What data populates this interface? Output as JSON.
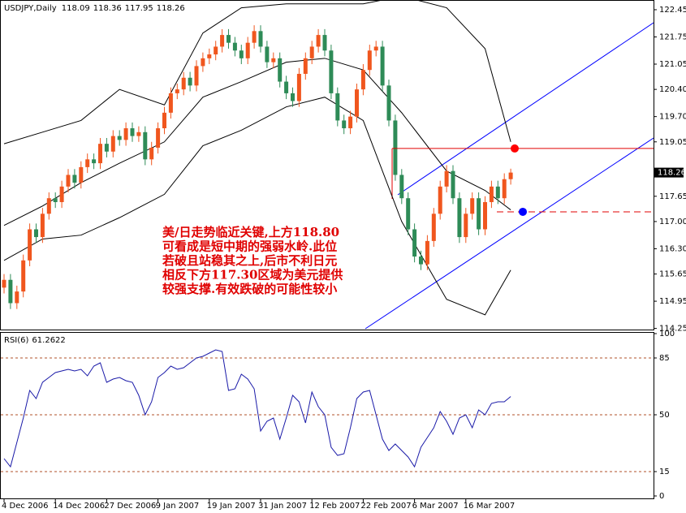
{
  "chart_data": [
    {
      "type": "candlestick",
      "title": "USDJPY,Daily",
      "open": [
        115.3,
        115.5,
        114.9,
        115.2,
        116.0,
        116.8,
        116.6,
        117.2,
        117.6,
        117.5,
        117.9,
        118.2,
        118.0,
        118.4,
        118.6,
        118.5,
        119.0,
        118.8,
        119.2,
        119.1,
        119.4,
        119.2,
        119.3,
        118.6,
        118.9,
        119.4,
        119.8,
        120.3,
        120.4,
        120.7,
        120.5,
        121.0,
        121.2,
        121.3,
        121.5,
        121.8,
        121.6,
        121.4,
        121.2,
        121.6,
        121.9,
        121.5,
        121.1,
        121.2,
        120.6,
        120.3,
        120.1,
        120.8,
        121.2,
        121.5,
        121.8,
        121.4,
        120.3,
        119.6,
        119.4,
        119.7,
        120.4,
        120.9,
        121.4,
        121.5,
        120.5,
        119.6,
        118.2,
        117.6,
        116.8,
        116.1,
        115.9,
        116.5,
        117.2,
        117.9,
        118.3,
        117.6,
        116.6,
        117.2,
        117.6,
        116.8,
        117.5,
        117.9,
        117.6,
        118.09
      ],
      "high": [
        115.65,
        115.65,
        115.35,
        116.15,
        116.95,
        116.95,
        117.35,
        117.75,
        117.75,
        118.05,
        118.35,
        118.35,
        118.55,
        118.75,
        118.75,
        119.15,
        119.15,
        119.35,
        119.35,
        119.55,
        119.55,
        119.45,
        119.45,
        119.05,
        119.55,
        119.95,
        120.45,
        120.55,
        120.85,
        120.85,
        121.15,
        121.35,
        121.45,
        121.65,
        121.95,
        121.95,
        121.75,
        121.55,
        121.75,
        122.05,
        122.05,
        121.65,
        121.35,
        121.35,
        120.75,
        120.45,
        120.95,
        121.35,
        121.65,
        121.95,
        121.95,
        121.55,
        120.45,
        119.75,
        119.85,
        120.55,
        121.05,
        121.55,
        121.65,
        121.65,
        120.65,
        119.75,
        118.35,
        117.75,
        116.95,
        116.25,
        116.65,
        117.35,
        118.05,
        118.45,
        118.45,
        117.75,
        117.35,
        117.75,
        117.75,
        117.65,
        118.05,
        118.05,
        118.24,
        118.36
      ],
      "low": [
        115.15,
        114.75,
        114.75,
        115.05,
        115.85,
        116.45,
        116.45,
        117.05,
        117.35,
        117.35,
        117.75,
        117.85,
        117.85,
        118.25,
        118.35,
        118.35,
        118.65,
        118.65,
        118.95,
        118.95,
        119.05,
        119.05,
        118.45,
        118.45,
        118.75,
        119.25,
        119.65,
        120.15,
        120.25,
        120.35,
        120.35,
        120.85,
        121.05,
        121.15,
        121.35,
        121.45,
        121.25,
        121.05,
        121.05,
        121.45,
        121.35,
        120.95,
        120.95,
        120.45,
        120.15,
        119.95,
        119.95,
        120.65,
        121.05,
        121.35,
        121.25,
        120.15,
        119.45,
        119.25,
        119.25,
        119.55,
        120.25,
        120.75,
        121.25,
        120.35,
        119.45,
        118.05,
        117.45,
        116.65,
        115.95,
        115.75,
        115.75,
        116.35,
        117.05,
        117.75,
        117.45,
        116.45,
        116.45,
        117.05,
        116.65,
        116.65,
        117.35,
        117.45,
        117.45,
        117.95
      ],
      "close": [
        115.5,
        114.9,
        115.2,
        116.0,
        116.8,
        116.6,
        117.2,
        117.6,
        117.5,
        117.9,
        118.2,
        118.0,
        118.4,
        118.6,
        118.5,
        119.0,
        118.8,
        119.2,
        119.1,
        119.4,
        119.2,
        119.3,
        118.6,
        118.9,
        119.4,
        119.8,
        120.3,
        120.4,
        120.7,
        120.5,
        121.0,
        121.2,
        121.3,
        121.5,
        121.8,
        121.6,
        121.4,
        121.2,
        121.6,
        121.9,
        121.5,
        121.1,
        121.2,
        120.6,
        120.3,
        120.1,
        120.8,
        121.2,
        121.5,
        121.8,
        121.4,
        120.3,
        119.6,
        119.4,
        119.7,
        120.4,
        120.9,
        121.4,
        121.5,
        120.5,
        119.6,
        118.2,
        117.6,
        116.8,
        116.1,
        115.9,
        116.5,
        117.2,
        117.9,
        118.3,
        117.6,
        116.6,
        117.2,
        117.6,
        116.8,
        117.5,
        117.9,
        117.6,
        118.09,
        118.26
      ],
      "up_color": "#f0561e",
      "down_color": "#2e8b57",
      "bands": {
        "x": [
          0,
          6,
          12,
          18,
          25,
          31,
          37,
          44,
          50,
          56,
          62,
          69,
          75,
          79
        ],
        "upper": [
          119.0,
          119.3,
          119.6,
          120.4,
          120.0,
          121.85,
          122.5,
          122.6,
          122.6,
          122.6,
          122.8,
          122.5,
          121.45,
          119.05
        ],
        "middle": [
          116.9,
          117.4,
          118.0,
          118.5,
          119.05,
          120.2,
          120.6,
          121.1,
          121.2,
          120.9,
          119.8,
          118.3,
          117.8,
          117.3
        ],
        "lower": [
          116.0,
          116.55,
          116.65,
          117.1,
          117.7,
          118.95,
          119.35,
          119.95,
          120.2,
          119.6,
          117.0,
          115.0,
          114.6,
          115.75
        ],
        "color": "#000000"
      },
      "levels": [
        {
          "value": 118.88,
          "color": "#e00000",
          "dashed": false
        },
        {
          "value": 117.25,
          "color": "#e00000",
          "dashed": true
        }
      ],
      "annotation": [
        "美/日走势临近关键,上方118.80",
        "可看成是短中期的强弱水岭.此位",
        "若破且站稳其之上,后市不利日元",
        "相反下方117.30区域为美元提供",
        "较强支撑.有效跌破的可能性较小"
      ],
      "ylim": [
        114.2,
        122.7
      ],
      "yticks": [
        122.45,
        121.75,
        121.05,
        {
          "value": 120.4,
          "label": "120.40"
        },
        {
          "value": 119.7,
          "label": "119.70"
        },
        119.05,
        117.65,
        {
          "value": 117.0,
          "label": "117.00"
        },
        {
          "value": 116.3,
          "label": "116.30"
        },
        115.65,
        114.95,
        114.25
      ],
      "xticks": [
        {
          "value": 0,
          "label": "4 Dec 2006"
        },
        {
          "value": 8,
          "label": "14 Dec 2006"
        },
        {
          "value": 16,
          "label": "27 Dec 2006"
        },
        {
          "value": 24,
          "label": "9 Jan 2007"
        },
        {
          "value": 32,
          "label": "19 Jan 2007"
        },
        {
          "value": 40,
          "label": "31 Jan 2007"
        },
        {
          "value": 48,
          "label": "12 Feb 2007"
        },
        {
          "value": 56,
          "label": "22 Feb 2007"
        },
        {
          "value": 64,
          "label": "6 Mar 2007"
        },
        {
          "value": 72,
          "label": "16 Mar 2007"
        }
      ]
    },
    {
      "type": "line",
      "title": "RSI(6)",
      "color": "#1a1aa8",
      "values": [
        23,
        18,
        33,
        48,
        65,
        60,
        70,
        73,
        76,
        77,
        78,
        77,
        78,
        74,
        80,
        82,
        70,
        72,
        73,
        71,
        70,
        62,
        50,
        58,
        73,
        76,
        80,
        78,
        79,
        82,
        85,
        86,
        88,
        90,
        89,
        65,
        66,
        75,
        72,
        66,
        40,
        46,
        48,
        35,
        48,
        62,
        58,
        45,
        64,
        55,
        50,
        30,
        25,
        26,
        42,
        60,
        64,
        65,
        50,
        35,
        28,
        32,
        28,
        24,
        18,
        30,
        36,
        42,
        52,
        46,
        38,
        48,
        50,
        42,
        53,
        50,
        57,
        58,
        58,
        61.2622
      ],
      "levels": [
        85,
        50,
        15
      ],
      "level_color": "#b0502a",
      "ylim": [
        -2,
        101.5
      ],
      "yticks": [
        100,
        85,
        50,
        15,
        0
      ]
    }
  ]
}
